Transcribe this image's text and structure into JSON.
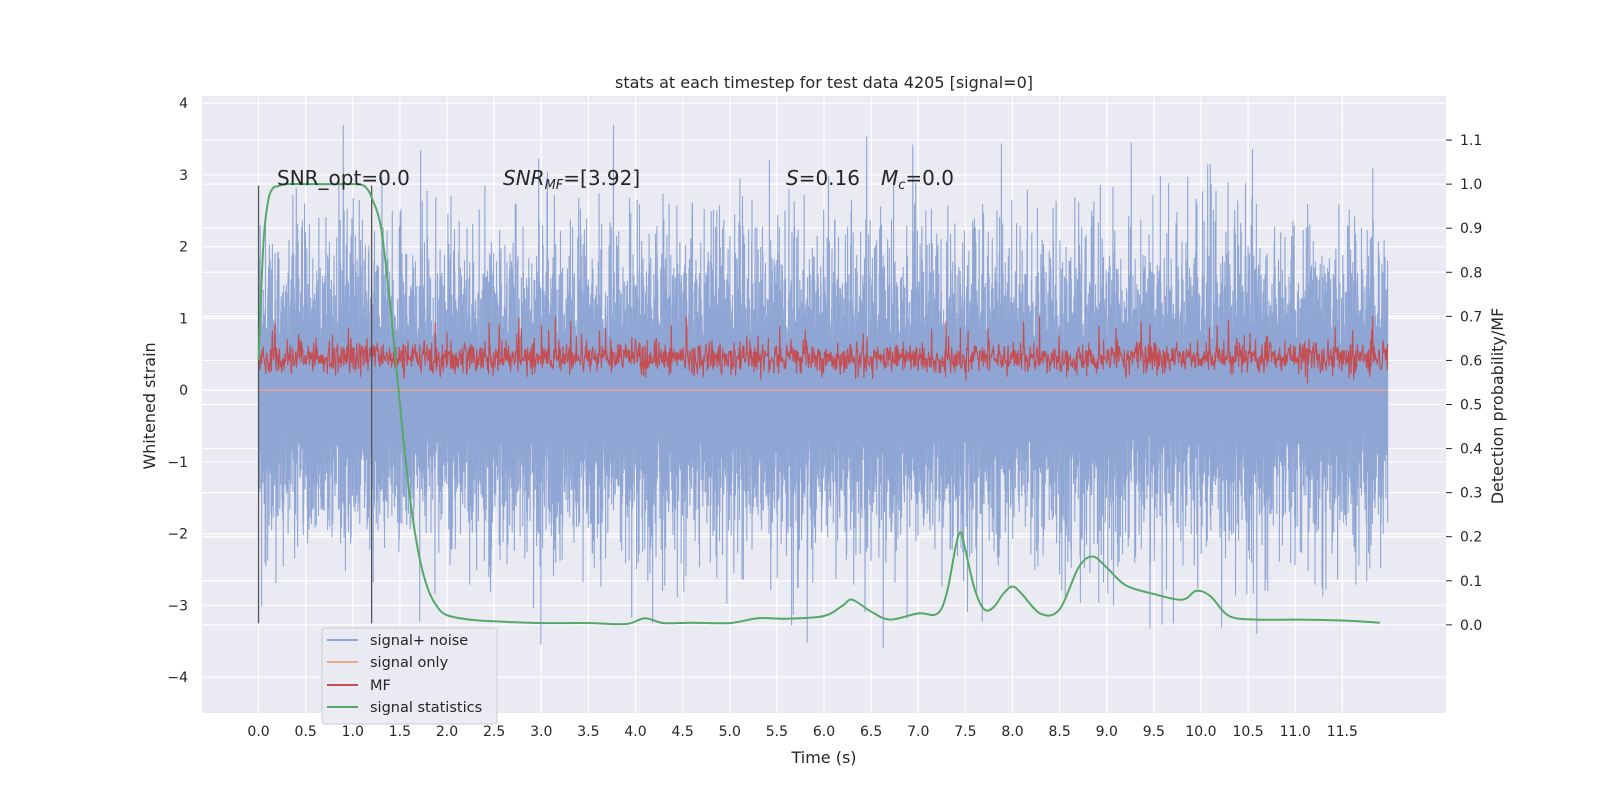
{
  "chart_data": {
    "type": "line",
    "title": "stats at each timestep for test data 4205 [signal=0]",
    "xlabel": "Time (s)",
    "ylabel": "Whitened strain",
    "y2label": "Detection probability/MF",
    "xlim": [
      -0.6,
      12.6
    ],
    "ylim": [
      -4.5,
      4.1
    ],
    "y2lim": [
      -0.2,
      1.2
    ],
    "xticks": [
      "0.0",
      "0.5",
      "1.0",
      "1.5",
      "2.0",
      "2.5",
      "3.0",
      "3.5",
      "4.0",
      "4.5",
      "5.0",
      "5.5",
      "6.0",
      "6.5",
      "7.0",
      "7.5",
      "8.0",
      "8.5",
      "9.0",
      "9.5",
      "10.0",
      "10.5",
      "11.0",
      "11.5"
    ],
    "yticks": [
      "4",
      "3",
      "2",
      "1",
      "0",
      "−1",
      "−2",
      "−3",
      "−4"
    ],
    "y2ticks": [
      "1.1",
      "1.0",
      "0.9",
      "0.8",
      "0.7",
      "0.6",
      "0.5",
      "0.4",
      "0.3",
      "0.2",
      "0.1",
      "0.0"
    ],
    "grid": true,
    "legend_position": "lower-left",
    "annotations": {
      "snr_opt": "SNR_opt=0.0",
      "snr_mf_label": "SNR",
      "snr_mf_sub": "MF",
      "snr_mf_value": "=[3.92]",
      "s_label": "S",
      "s_value": "=0.16",
      "mc_label": "M",
      "mc_sub": "c",
      "mc_value": "=0.0"
    },
    "vertical_lines_x": [
      0.0,
      1.2
    ],
    "series": [
      {
        "name": "signal+ noise",
        "color": "#8fa6d4",
        "axis": "left",
        "description_range": [
          -3.6,
          3.7
        ]
      },
      {
        "name": "signal only",
        "color": "#e8a88a",
        "axis": "left",
        "values_constant": 0.0
      },
      {
        "name": "MF",
        "color": "#c44e52",
        "axis": "right",
        "description_range": [
          0.53,
          0.7
        ]
      },
      {
        "name": "signal statistics",
        "color": "#55a868",
        "axis": "right",
        "x": [
          0.0,
          0.05,
          0.1,
          0.15,
          0.2,
          0.3,
          0.5,
          0.8,
          1.0,
          1.1,
          1.15,
          1.2,
          1.3,
          1.4,
          1.5,
          1.6,
          1.7,
          1.8,
          1.9,
          2.0,
          2.2,
          2.5,
          3.0,
          3.5,
          3.9,
          4.1,
          4.3,
          4.6,
          5.0,
          5.3,
          5.6,
          6.0,
          6.2,
          6.3,
          6.5,
          6.7,
          7.0,
          7.2,
          7.3,
          7.4,
          7.45,
          7.5,
          7.6,
          7.7,
          7.8,
          7.9,
          8.0,
          8.1,
          8.3,
          8.5,
          8.7,
          8.85,
          9.0,
          9.2,
          9.5,
          9.8,
          9.95,
          10.1,
          10.3,
          10.6,
          11.0,
          11.5,
          11.9
        ],
        "y": [
          0.6,
          0.86,
          0.96,
          0.99,
          0.995,
          1.0,
          1.0,
          1.0,
          1.0,
          0.998,
          0.99,
          0.97,
          0.9,
          0.72,
          0.5,
          0.3,
          0.16,
          0.08,
          0.04,
          0.022,
          0.013,
          0.008,
          0.004,
          0.004,
          0.002,
          0.015,
          0.004,
          0.005,
          0.004,
          0.015,
          0.014,
          0.02,
          0.044,
          0.057,
          0.03,
          0.012,
          0.026,
          0.025,
          0.07,
          0.18,
          0.21,
          0.17,
          0.08,
          0.035,
          0.04,
          0.07,
          0.087,
          0.07,
          0.025,
          0.035,
          0.13,
          0.155,
          0.13,
          0.09,
          0.07,
          0.057,
          0.077,
          0.065,
          0.02,
          0.012,
          0.012,
          0.01,
          0.005
        ]
      }
    ]
  }
}
